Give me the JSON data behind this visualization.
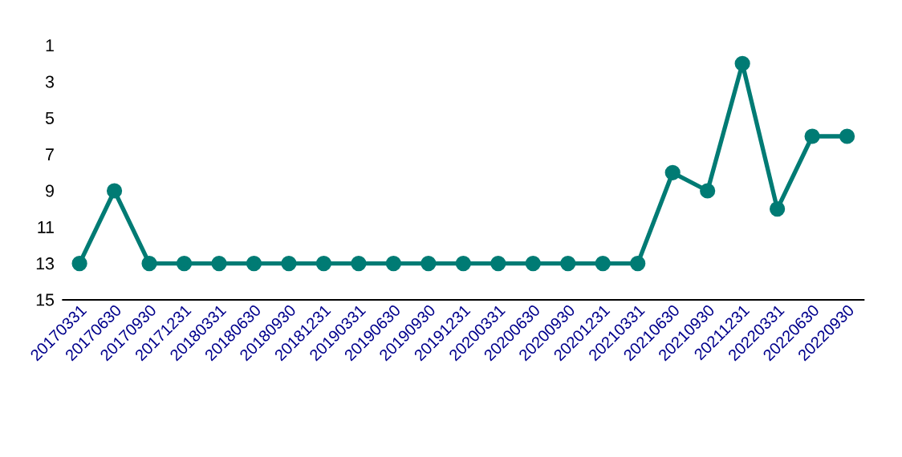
{
  "chart_data": {
    "type": "line",
    "categories": [
      "20170331",
      "20170630",
      "20170930",
      "20171231",
      "20180331",
      "20180630",
      "20180930",
      "20181231",
      "20190331",
      "20190630",
      "20190930",
      "20191231",
      "20200331",
      "20200630",
      "20200930",
      "20201231",
      "20210331",
      "20210630",
      "20210930",
      "20211231",
      "20220331",
      "20220630",
      "20220930"
    ],
    "series": [
      {
        "color": "#007b74",
        "values": [
          13,
          9,
          13,
          13,
          13,
          13,
          13,
          13,
          13,
          13,
          13,
          13,
          13,
          13,
          13,
          13,
          13,
          8,
          9,
          2,
          10,
          6,
          6
        ]
      }
    ],
    "ylim": [
      15,
      1
    ],
    "yticks": [
      1,
      3,
      5,
      7,
      9,
      11,
      13,
      15
    ],
    "marker": "circle",
    "line_style": "solid",
    "grid": false
  }
}
